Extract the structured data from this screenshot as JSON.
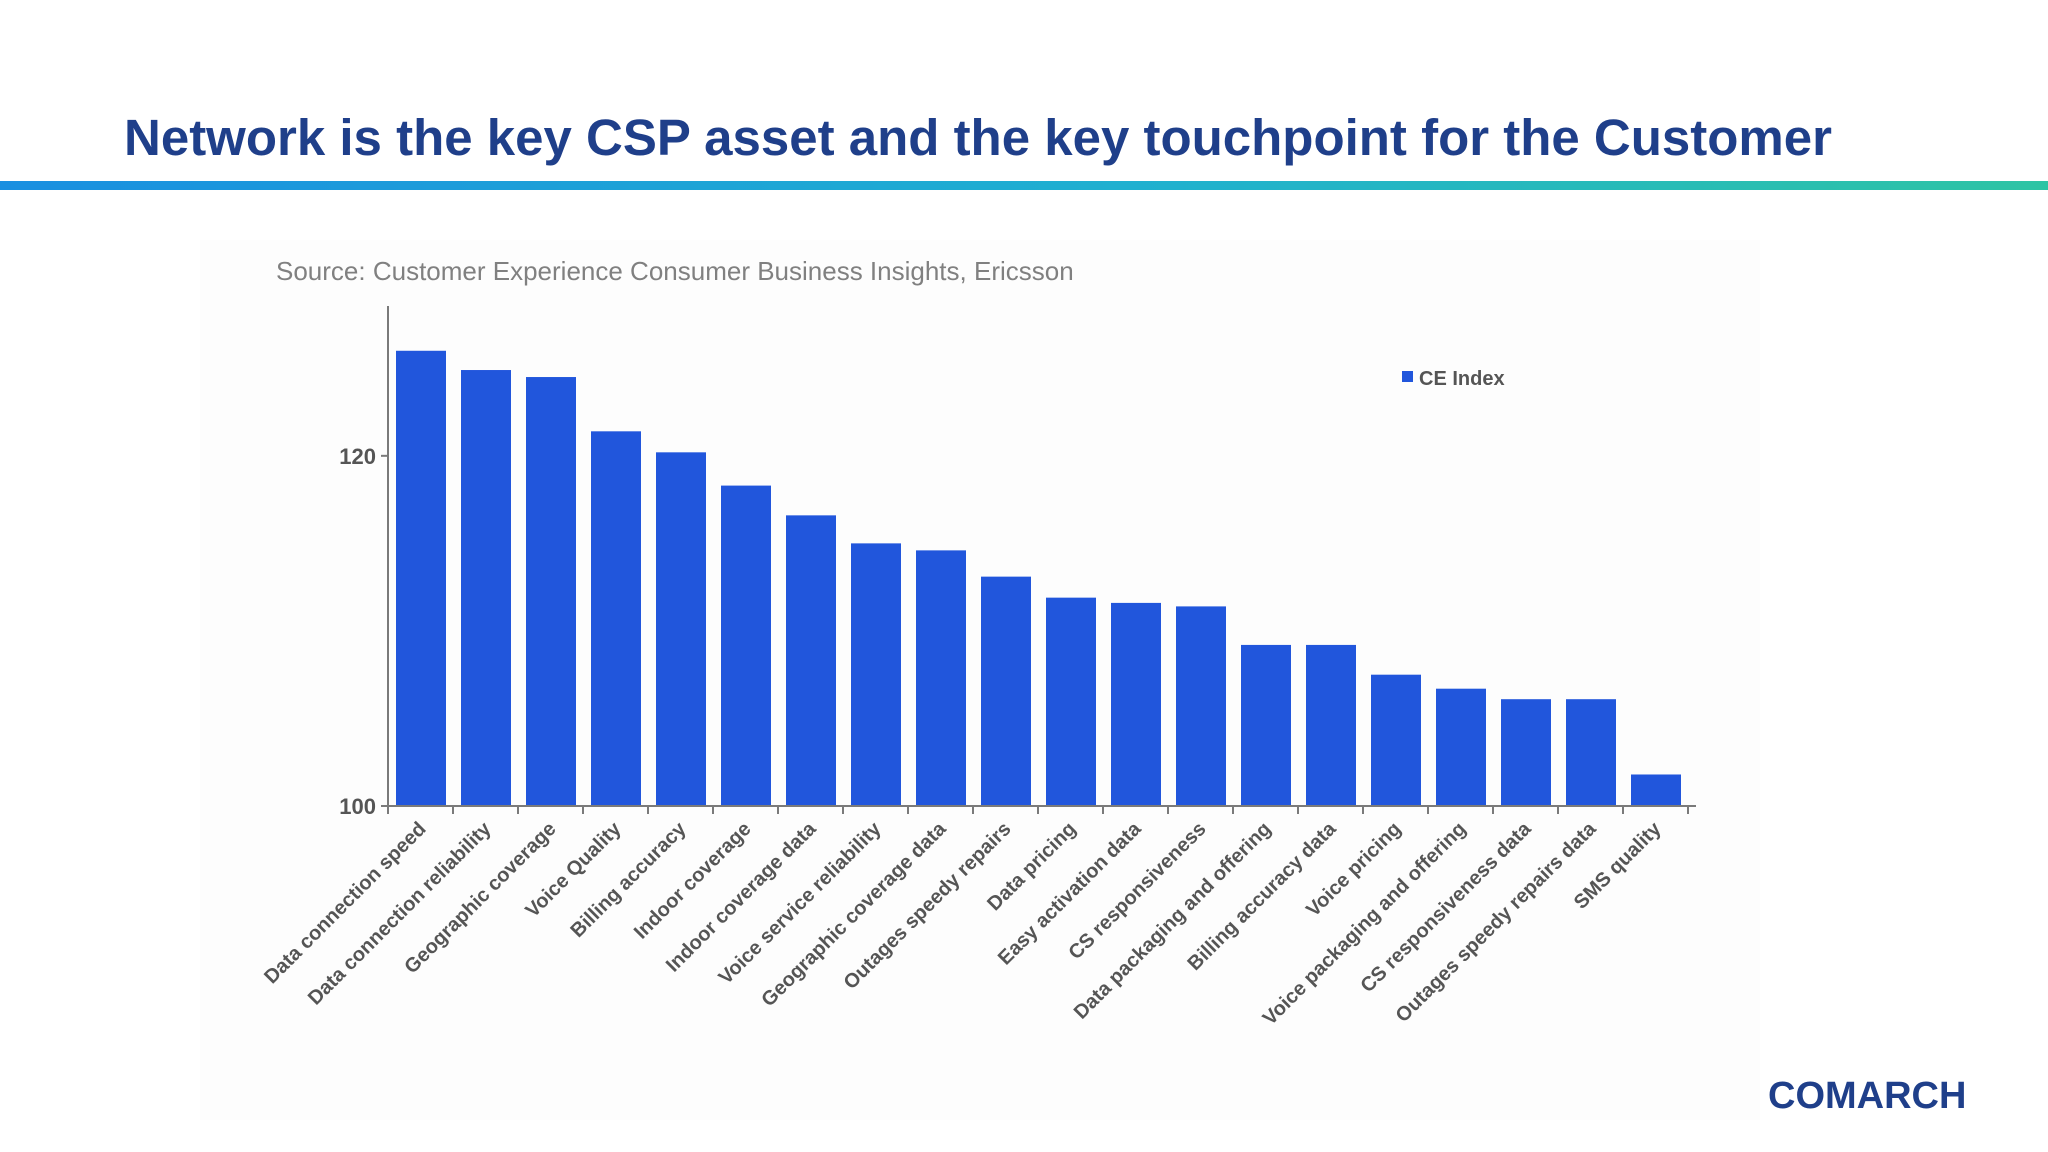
{
  "slide": {
    "title": "Network is the key CSP asset and the key touchpoint for the Customer",
    "brand": "COMARCH",
    "colors": {
      "title": "#1f3f8a",
      "bar": "#2156dc",
      "rule_start": "#1a8fe0",
      "rule_end": "#2ec4a4"
    }
  },
  "chart_data": {
    "type": "bar",
    "subtitle": "Source: Customer Experience Consumer Business Insights, Ericsson",
    "categories": [
      "Data connection speed",
      "Data connection reliability",
      "Geographic coverage",
      "Voice Quality",
      "Billing accuracy",
      "Indoor coverage",
      "Indoor coverage data",
      "Voice service reliability",
      "Geographic coverage data",
      "Outages speedy repairs",
      "Data pricing",
      "Easy activation data",
      "CS responsiveness",
      "Data packaging and offering",
      "Billing accuracy data",
      "Voice pricing",
      "Voice packaging and offering",
      "CS responsiveness data",
      "Outages speedy repairs data",
      "SMS quality"
    ],
    "series": [
      {
        "name": "CE Index",
        "color": "#2156dc",
        "values": [
          126.0,
          124.9,
          124.5,
          121.4,
          120.2,
          118.3,
          116.6,
          115.0,
          114.6,
          113.1,
          111.9,
          111.6,
          111.4,
          109.2,
          109.2,
          107.5,
          106.7,
          106.1,
          106.1,
          101.8
        ]
      }
    ],
    "yticks": [
      100,
      120
    ],
    "ylim": [
      100,
      128.5
    ],
    "xlabel": "",
    "ylabel": "",
    "grid": false,
    "legend": "top-right"
  }
}
